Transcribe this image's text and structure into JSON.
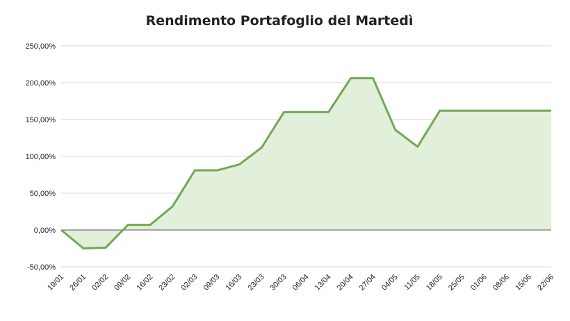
{
  "chart_data": {
    "type": "area",
    "title": "Rendimento Portafoglio del Martedì",
    "xlabel": "",
    "ylabel": "",
    "ylim": [
      -50,
      250
    ],
    "yticks": [
      -50,
      0,
      50,
      100,
      150,
      200,
      250
    ],
    "ytick_labels": [
      "-50,00%",
      "0,00%",
      "50,00%",
      "100,00%",
      "150,00%",
      "200,00%",
      "250,00%"
    ],
    "grid": true,
    "legend": "none",
    "colors": {
      "line": "#70a854",
      "fill": "#e2efda",
      "grid": "#d4d4d4",
      "zero_line": "#555555"
    },
    "x": [
      "19/01",
      "26/01",
      "02/02",
      "09/02",
      "16/02",
      "23/02",
      "02/03",
      "09/03",
      "16/03",
      "23/03",
      "30/03",
      "06/04",
      "13/04",
      "20/04",
      "27/04",
      "04/05",
      "11/05",
      "18/05",
      "25/05",
      "01/06",
      "08/06",
      "15/06",
      "22/06"
    ],
    "series": [
      {
        "values": [
          0,
          -25,
          -24,
          7,
          7,
          32,
          81,
          81,
          89,
          112,
          160,
          160,
          160,
          206,
          206,
          136,
          113,
          162,
          162,
          162,
          162,
          162,
          162
        ]
      }
    ]
  }
}
